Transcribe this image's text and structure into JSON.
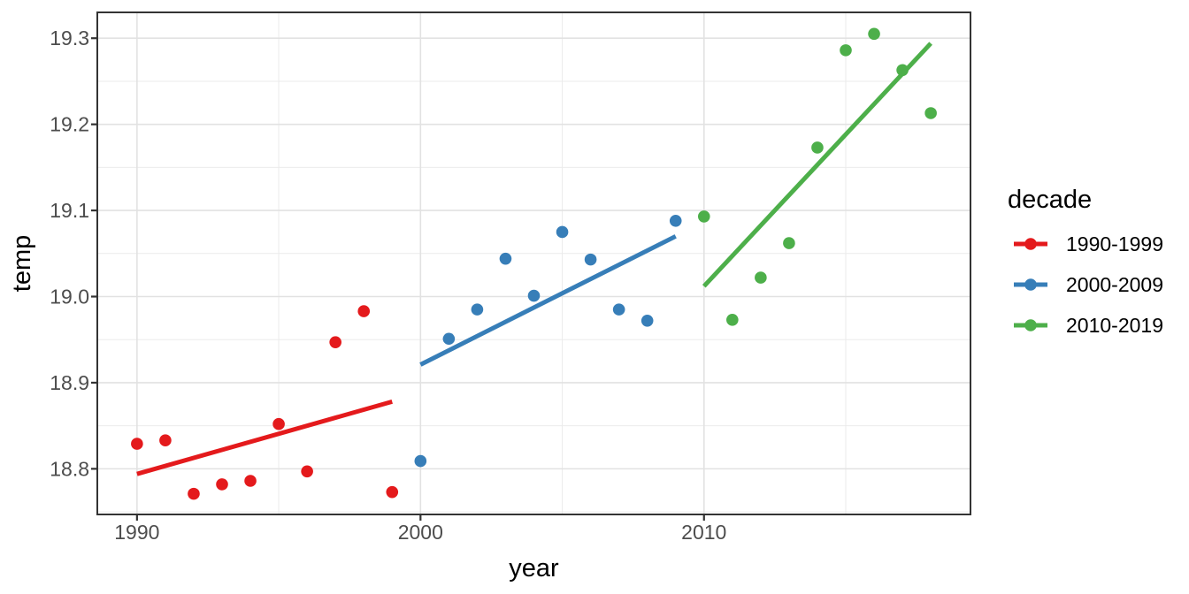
{
  "figure": {
    "background_color": "#ffffff"
  },
  "chart_data": {
    "type": "scatter",
    "title": "",
    "xlabel": "year",
    "ylabel": "temp",
    "legend_title": "decade",
    "legend_position": "right",
    "grid": true,
    "x_domain": [
      1988.6,
      2019.4
    ],
    "y_domain": [
      18.747,
      19.33
    ],
    "x_ticks": [
      {
        "value": 1990,
        "label": "1990"
      },
      {
        "value": 2000,
        "label": "2000"
      },
      {
        "value": 2010,
        "label": "2010"
      }
    ],
    "y_ticks": [
      {
        "value": 18.8,
        "label": "18.8"
      },
      {
        "value": 18.9,
        "label": "18.9"
      },
      {
        "value": 19.0,
        "label": "19.0"
      },
      {
        "value": 19.1,
        "label": "19.1"
      },
      {
        "value": 19.2,
        "label": "19.2"
      },
      {
        "value": 19.3,
        "label": "19.3"
      }
    ],
    "x_minor_gridlines": [
      1995,
      2005,
      2015
    ],
    "y_minor_gridlines": [
      18.75,
      18.85,
      18.95,
      19.05,
      19.15,
      19.25
    ],
    "series": [
      {
        "name": "1990-1999",
        "color": "#E41A1C",
        "x": [
          1990,
          1991,
          1992,
          1993,
          1994,
          1995,
          1996,
          1997,
          1998,
          1999
        ],
        "y": [
          18.829,
          18.833,
          18.771,
          18.782,
          18.786,
          18.852,
          18.797,
          18.947,
          18.983,
          18.773
        ],
        "trend": {
          "x": [
            1990,
            1999
          ],
          "y": [
            18.794,
            18.878
          ]
        }
      },
      {
        "name": "2000-2009",
        "color": "#377EB8",
        "x": [
          2000,
          2001,
          2002,
          2003,
          2004,
          2005,
          2006,
          2007,
          2008,
          2009
        ],
        "y": [
          18.809,
          18.951,
          18.985,
          19.044,
          19.001,
          19.075,
          19.043,
          18.985,
          18.972,
          19.088
        ],
        "trend": {
          "x": [
            2000,
            2009
          ],
          "y": [
            18.921,
            19.07
          ]
        }
      },
      {
        "name": "2010-2019",
        "color": "#4DAF4A",
        "x": [
          2010,
          2011,
          2012,
          2013,
          2014,
          2015,
          2016,
          2017,
          2018
        ],
        "y": [
          19.093,
          18.973,
          19.022,
          19.062,
          19.173,
          19.286,
          19.305,
          19.263,
          19.213
        ],
        "trend": {
          "x": [
            2010,
            2018
          ],
          "y": [
            19.012,
            19.294
          ]
        }
      }
    ],
    "style": {
      "point_radius": 6.8,
      "trend_line_width": 5,
      "grid_major_color": "#E2E2E2",
      "grid_minor_color": "#EBEBEB",
      "grid_major_width": 1.6,
      "grid_minor_width": 1.0,
      "panel_border_color": "#333333",
      "panel_border_width": 2,
      "tick_mark_color": "#333333",
      "tick_mark_length": 7,
      "axis_text_color": "#4d4d4d"
    }
  }
}
